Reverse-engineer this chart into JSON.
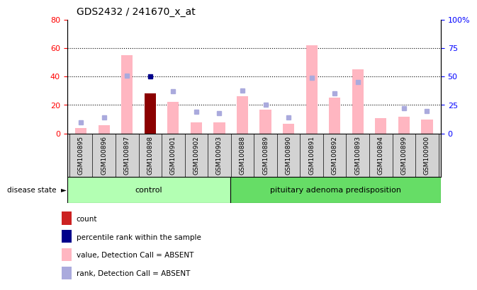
{
  "title": "GDS2432 / 241670_x_at",
  "samples": [
    "GSM100895",
    "GSM100896",
    "GSM100897",
    "GSM100898",
    "GSM100901",
    "GSM100902",
    "GSM100903",
    "GSM100888",
    "GSM100889",
    "GSM100890",
    "GSM100891",
    "GSM100892",
    "GSM100893",
    "GSM100894",
    "GSM100899",
    "GSM100900"
  ],
  "groups": [
    "control",
    "control",
    "control",
    "control",
    "control",
    "control",
    "control",
    "pituitary adenoma predisposition",
    "pituitary adenoma predisposition",
    "pituitary adenoma predisposition",
    "pituitary adenoma predisposition",
    "pituitary adenoma predisposition",
    "pituitary adenoma predisposition",
    "pituitary adenoma predisposition",
    "pituitary adenoma predisposition",
    "pituitary adenoma predisposition"
  ],
  "value_absent": [
    4,
    6,
    55,
    null,
    22,
    8,
    8,
    26,
    17,
    7,
    62,
    25,
    45,
    11,
    12,
    10
  ],
  "rank_absent": [
    10,
    14,
    51,
    null,
    37,
    19,
    18,
    38,
    25,
    14,
    49,
    35,
    45,
    null,
    22,
    20
  ],
  "count_value": [
    null,
    null,
    null,
    28,
    null,
    null,
    null,
    null,
    null,
    null,
    null,
    null,
    null,
    null,
    null,
    null
  ],
  "percentile_rank": [
    null,
    null,
    null,
    40,
    null,
    null,
    null,
    null,
    null,
    null,
    null,
    null,
    null,
    null,
    null,
    null
  ],
  "ylim_left": [
    0,
    80
  ],
  "ylim_right": [
    0,
    100
  ],
  "control_count": 7,
  "bar_color_value": "#ffb6c1",
  "bar_color_count": "#8b0000",
  "dot_color_rank_absent": "#aaaadd",
  "dot_color_percentile": "#00008b",
  "label_area_color": "#d3d3d3",
  "control_color": "#b3ffb3",
  "pituitary_color": "#66dd66",
  "legend_items": [
    {
      "label": "count",
      "color": "#cc2222"
    },
    {
      "label": "percentile rank within the sample",
      "color": "#00008b"
    },
    {
      "label": "value, Detection Call = ABSENT",
      "color": "#ffb6c1"
    },
    {
      "label": "rank, Detection Call = ABSENT",
      "color": "#aaaadd"
    }
  ]
}
